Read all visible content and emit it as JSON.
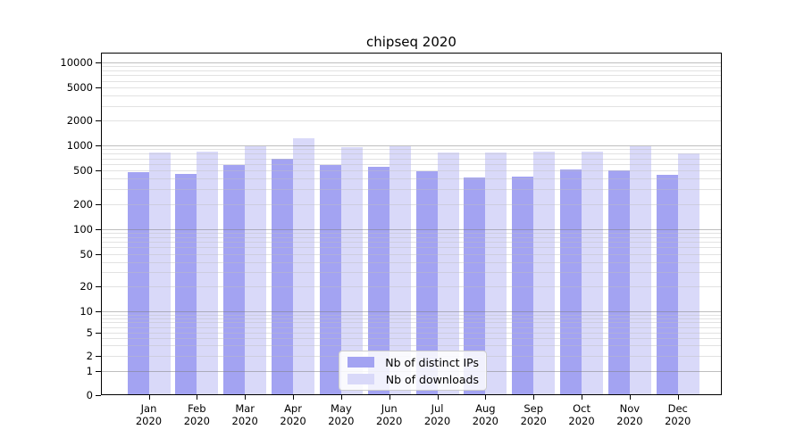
{
  "chart_data": {
    "type": "bar",
    "title": "chipseq 2020",
    "year": "2020",
    "categories": [
      "Jan",
      "Feb",
      "Mar",
      "Apr",
      "May",
      "Jun",
      "Jul",
      "Aug",
      "Sep",
      "Oct",
      "Nov",
      "Dec"
    ],
    "series": [
      {
        "name": "Nb of distinct IPs",
        "color": "#a3a3f2",
        "values": [
          465,
          445,
          570,
          680,
          575,
          545,
          480,
          405,
          410,
          505,
          495,
          435
        ]
      },
      {
        "name": "Nb of downloads",
        "color": "#d9d9f9",
        "values": [
          810,
          815,
          960,
          1180,
          930,
          950,
          800,
          795,
          820,
          830,
          960,
          790
        ]
      }
    ],
    "xlabel": "",
    "ylabel": "",
    "yscale": "symlog",
    "ylim": [
      0,
      13000
    ],
    "yticks": [
      10000,
      5000,
      2000,
      1000,
      500,
      200,
      100,
      50,
      20,
      10,
      5,
      2,
      1,
      0
    ],
    "ytick_labels": [
      "10000",
      "5000",
      "2000",
      "1000",
      "500",
      "200",
      "100",
      "50",
      "20",
      "10",
      "5",
      "2",
      "1",
      "0"
    ],
    "grid": {
      "horizontal_major": true,
      "horizontal_minor": true,
      "vertical": false
    },
    "legend_position": "lower center"
  }
}
